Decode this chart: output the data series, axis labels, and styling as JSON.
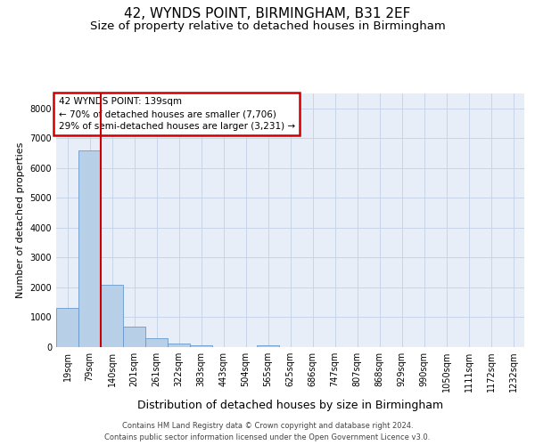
{
  "title": "42, WYNDS POINT, BIRMINGHAM, B31 2EF",
  "subtitle": "Size of property relative to detached houses in Birmingham",
  "xlabel": "Distribution of detached houses by size in Birmingham",
  "ylabel": "Number of detached properties",
  "footer_line1": "Contains HM Land Registry data © Crown copyright and database right 2024.",
  "footer_line2": "Contains public sector information licensed under the Open Government Licence v3.0.",
  "annotation_line1": "42 WYNDS POINT: 139sqm",
  "annotation_line2": "← 70% of detached houses are smaller (7,706)",
  "annotation_line3": "29% of semi-detached houses are larger (3,231) →",
  "bins": [
    "19sqm",
    "79sqm",
    "140sqm",
    "201sqm",
    "261sqm",
    "322sqm",
    "383sqm",
    "443sqm",
    "504sqm",
    "565sqm",
    "625sqm",
    "686sqm",
    "747sqm",
    "807sqm",
    "868sqm",
    "929sqm",
    "990sqm",
    "1050sqm",
    "1111sqm",
    "1172sqm",
    "1232sqm"
  ],
  "values": [
    1300,
    6600,
    2100,
    700,
    300,
    120,
    70,
    0,
    0,
    70,
    0,
    0,
    0,
    0,
    0,
    0,
    0,
    0,
    0,
    0,
    0
  ],
  "bar_color": "#b8cfe8",
  "bar_edge_color": "#6699cc",
  "vline_color": "#cc0000",
  "vline_x": 1.5,
  "ylim_min": 0,
  "ylim_max": 8500,
  "ytick_max": 8000,
  "ytick_step": 1000,
  "grid_color": "#c8d4e8",
  "bg_color": "#e8eef8",
  "annotation_border_color": "#cc0000",
  "title_fontsize": 11,
  "subtitle_fontsize": 9.5,
  "ylabel_fontsize": 8,
  "xlabel_fontsize": 9,
  "tick_fontsize": 7,
  "footer_fontsize": 6
}
